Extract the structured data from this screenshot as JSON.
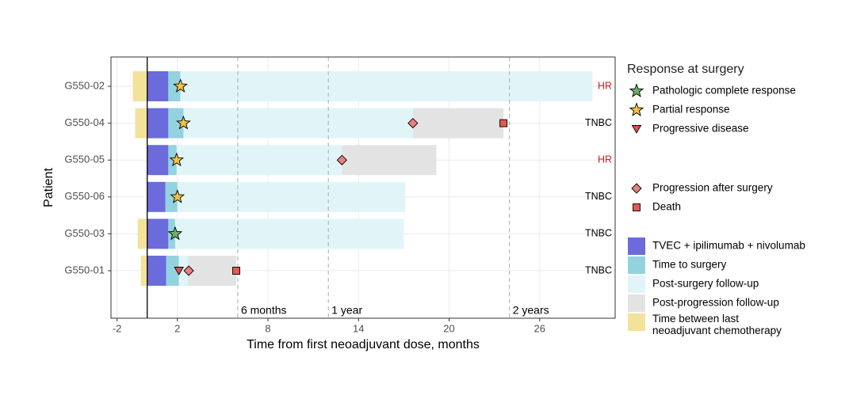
{
  "chart_data": {
    "type": "swimmer",
    "x_label": "Time from first neoadjuvant dose, months",
    "y_label": "Patient",
    "categories": [
      "G550-02",
      "G550-04",
      "G550-05",
      "G550-06",
      "G550-03",
      "G550-01"
    ],
    "xlim": [
      -2.4,
      31.0
    ],
    "xticks": [
      -2,
      2,
      8,
      14,
      20,
      26
    ],
    "grid": true,
    "reference_lines": [
      {
        "value": 6,
        "label": "6 months"
      },
      {
        "value": 12,
        "label": "1 year"
      },
      {
        "value": 24,
        "label": "2 years"
      }
    ],
    "subtypes": [
      "HR",
      "TNBC",
      "HR",
      "TNBC",
      "TNBC",
      "TNBC"
    ],
    "subtype_colors": {
      "HR": "#d7191c",
      "TNBC": "#000000"
    },
    "segments": [
      {
        "name": "TVEC + ipilimumab + nivolumab",
        "color": "#6b6bdc",
        "values": [
          1.4,
          1.4,
          1.4,
          1.2,
          1.4,
          1.25
        ]
      },
      {
        "name": "Time to surgery",
        "color": "#92d3df",
        "values": [
          0.8,
          1.0,
          0.55,
          0.8,
          0.45,
          0.85
        ]
      },
      {
        "name": "Post-surgery follow-up",
        "color": "#e1f5f9",
        "values": [
          27.3,
          15.2,
          10.95,
          15.1,
          15.15,
          0.6
        ]
      },
      {
        "name": "Post-progression follow-up",
        "color": "#e3e3e3",
        "values": [
          null,
          6.0,
          6.25,
          null,
          null,
          3.2
        ]
      },
      {
        "name": "Time between last neoadjuvant chemotherapy",
        "color": "#f2e29a",
        "values": [
          -0.95,
          -0.8,
          null,
          null,
          -0.63,
          -0.42
        ]
      }
    ],
    "legend_title": "Response at surgery",
    "markers": [
      {
        "name": "Pathologic complete response",
        "shape": "star",
        "color": "#6fae6a",
        "values": [
          null,
          null,
          null,
          null,
          1.85,
          null
        ]
      },
      {
        "name": "Partial response",
        "shape": "star",
        "color": "#f5c242",
        "values": [
          2.2,
          2.4,
          1.95,
          2.0,
          null,
          null
        ]
      },
      {
        "name": "Progressive disease",
        "shape": "triangle",
        "color": "#d9534f",
        "values": [
          null,
          null,
          null,
          null,
          null,
          2.1
        ]
      },
      {
        "name": "Progression after surgery",
        "shape": "diamond",
        "color": "#e88080",
        "values": [
          null,
          17.6,
          12.9,
          null,
          null,
          2.75
        ]
      },
      {
        "name": "Death",
        "shape": "square",
        "color": "#e05a50",
        "values": [
          null,
          23.6,
          null,
          null,
          null,
          5.9
        ]
      }
    ]
  }
}
